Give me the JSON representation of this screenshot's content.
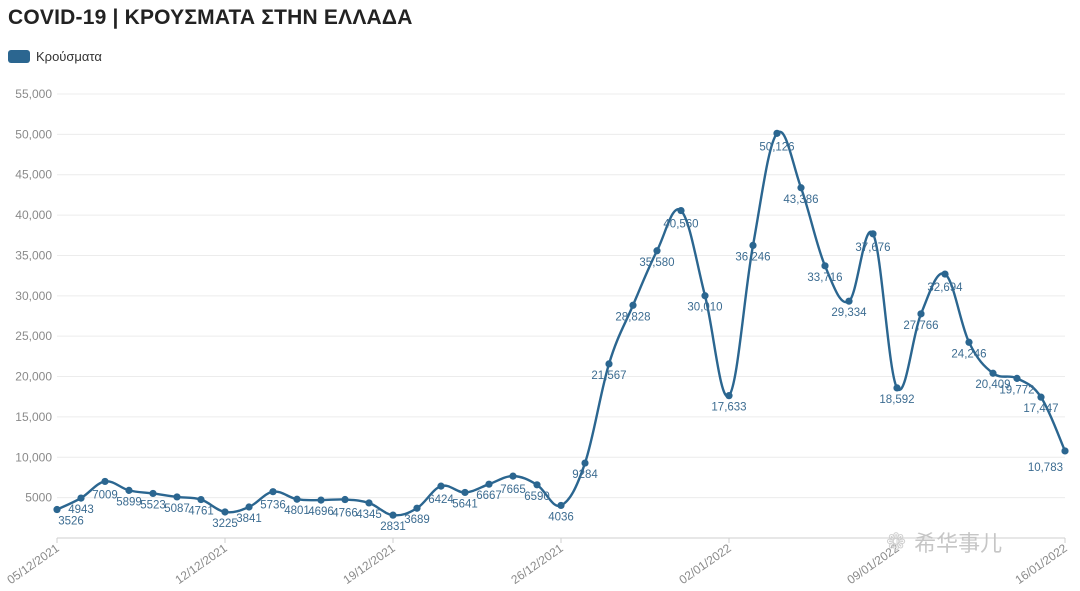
{
  "chart_data": {
    "type": "line",
    "title": "COVID-19 | ΚΡΟΥΣΜΑΤΑ ΣΤΗΝ ΕΛΛΑΔΑ",
    "xlabel": "",
    "ylabel": "",
    "ylim": [
      0,
      55000
    ],
    "yticks": [
      5000,
      10000,
      15000,
      20000,
      25000,
      30000,
      35000,
      40000,
      45000,
      50000,
      55000
    ],
    "ytick_labels": [
      "5000",
      "10,000",
      "15,000",
      "20,000",
      "25,000",
      "30,000",
      "35,000",
      "40,000",
      "45,000",
      "50,000",
      "55,000"
    ],
    "xtick_labels": [
      {
        "label": "05/12/2021",
        "index": 0
      },
      {
        "label": "12/12/2021",
        "index": 7
      },
      {
        "label": "19/12/2021",
        "index": 14
      },
      {
        "label": "26/12/2021",
        "index": 21
      },
      {
        "label": "02/01/2022",
        "index": 28
      },
      {
        "label": "09/01/2022",
        "index": 35
      },
      {
        "label": "16/01/2022",
        "index": 42
      }
    ],
    "grid": true,
    "legend": "top-left",
    "color": "#2b6690",
    "series": [
      {
        "name": "Κρούσματα",
        "values": [
          3526,
          4943,
          7009,
          5899,
          5523,
          5087,
          4761,
          3225,
          3841,
          5736,
          4801,
          4696,
          4766,
          4345,
          2831,
          3689,
          6424,
          5641,
          6667,
          7665,
          6590,
          4036,
          9284,
          21567,
          28828,
          35580,
          40560,
          30010,
          17633,
          36246,
          50126,
          43386,
          33716,
          29334,
          37676,
          18592,
          27766,
          32694,
          24246,
          20409,
          19772,
          17447,
          10783
        ],
        "labels": [
          "3526",
          "4943",
          "7009",
          "5899",
          "5523",
          "5087",
          "4761",
          "3225",
          "3841",
          "5736",
          "4801",
          "4696",
          "4766",
          "4345",
          "2831",
          "3689",
          "6424",
          "5641",
          "6667",
          "7665",
          "6590",
          "4036",
          "9284",
          "21,567",
          "28,828",
          "35,580",
          "40,560",
          "30,010",
          "17,633",
          "36,246",
          "50,126",
          "43,386",
          "33,716",
          "29,334",
          "37,676",
          "18,592",
          "27,766",
          "32,694",
          "24,246",
          "20,409",
          "19,772",
          "17,447",
          "10,783"
        ]
      }
    ]
  },
  "watermark": {
    "text": "希华事儿",
    "icon": "wechat-icon"
  }
}
